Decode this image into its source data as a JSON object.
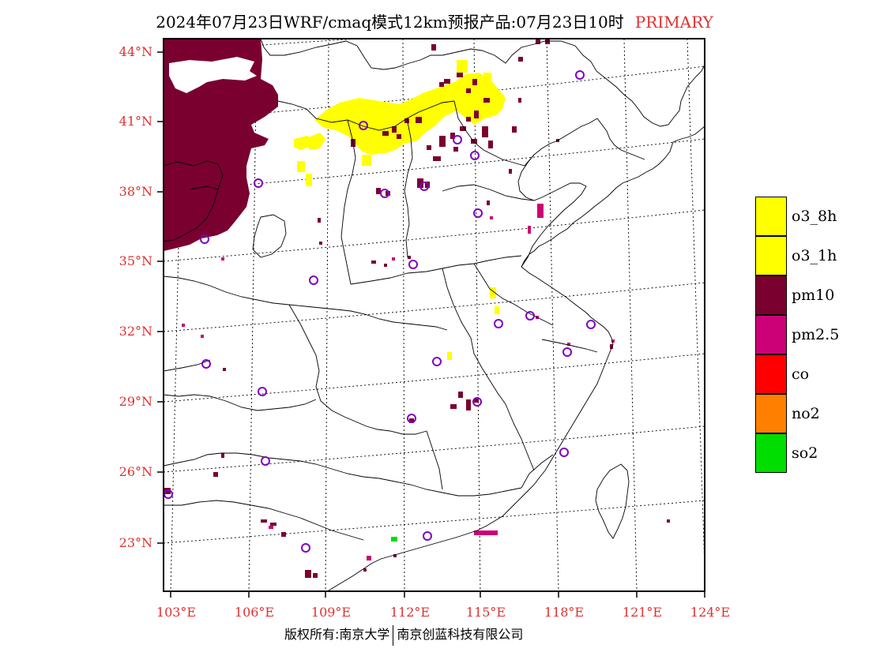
{
  "title": {
    "text": "2024年07月23日WRF/cmaq模式12km预报产品:07月23日10时",
    "tag": "PRIMARY"
  },
  "axes": {
    "lat_labels": [
      "44°N",
      "41°N",
      "38°N",
      "35°N",
      "32°N",
      "29°N",
      "26°N",
      "23°N"
    ],
    "lon_labels": [
      "103°E",
      "106°E",
      "109°E",
      "112°E",
      "115°E",
      "118°E",
      "121°E",
      "124°E"
    ]
  },
  "legend": {
    "items": [
      {
        "label": "o3_8h",
        "color": "#ffff00"
      },
      {
        "label": "o3_1h",
        "color": "#ffff00"
      },
      {
        "label": "pm10",
        "color": "#7a0030"
      },
      {
        "label": "pm2.5",
        "color": "#cc0077"
      },
      {
        "label": "co",
        "color": "#ff0000"
      },
      {
        "label": "no2",
        "color": "#ff8000"
      },
      {
        "label": "so2",
        "color": "#00dd00"
      }
    ]
  },
  "colors": {
    "pm10": "#7a0030",
    "pm25": "#cc0077",
    "o3": "#ffff00",
    "so2": "#00dd00",
    "station": "#8000c0",
    "label_red": "#e03030"
  },
  "footer": {
    "left": "版权所有:南京大学",
    "right": "南京创蓝科技有限公司"
  }
}
